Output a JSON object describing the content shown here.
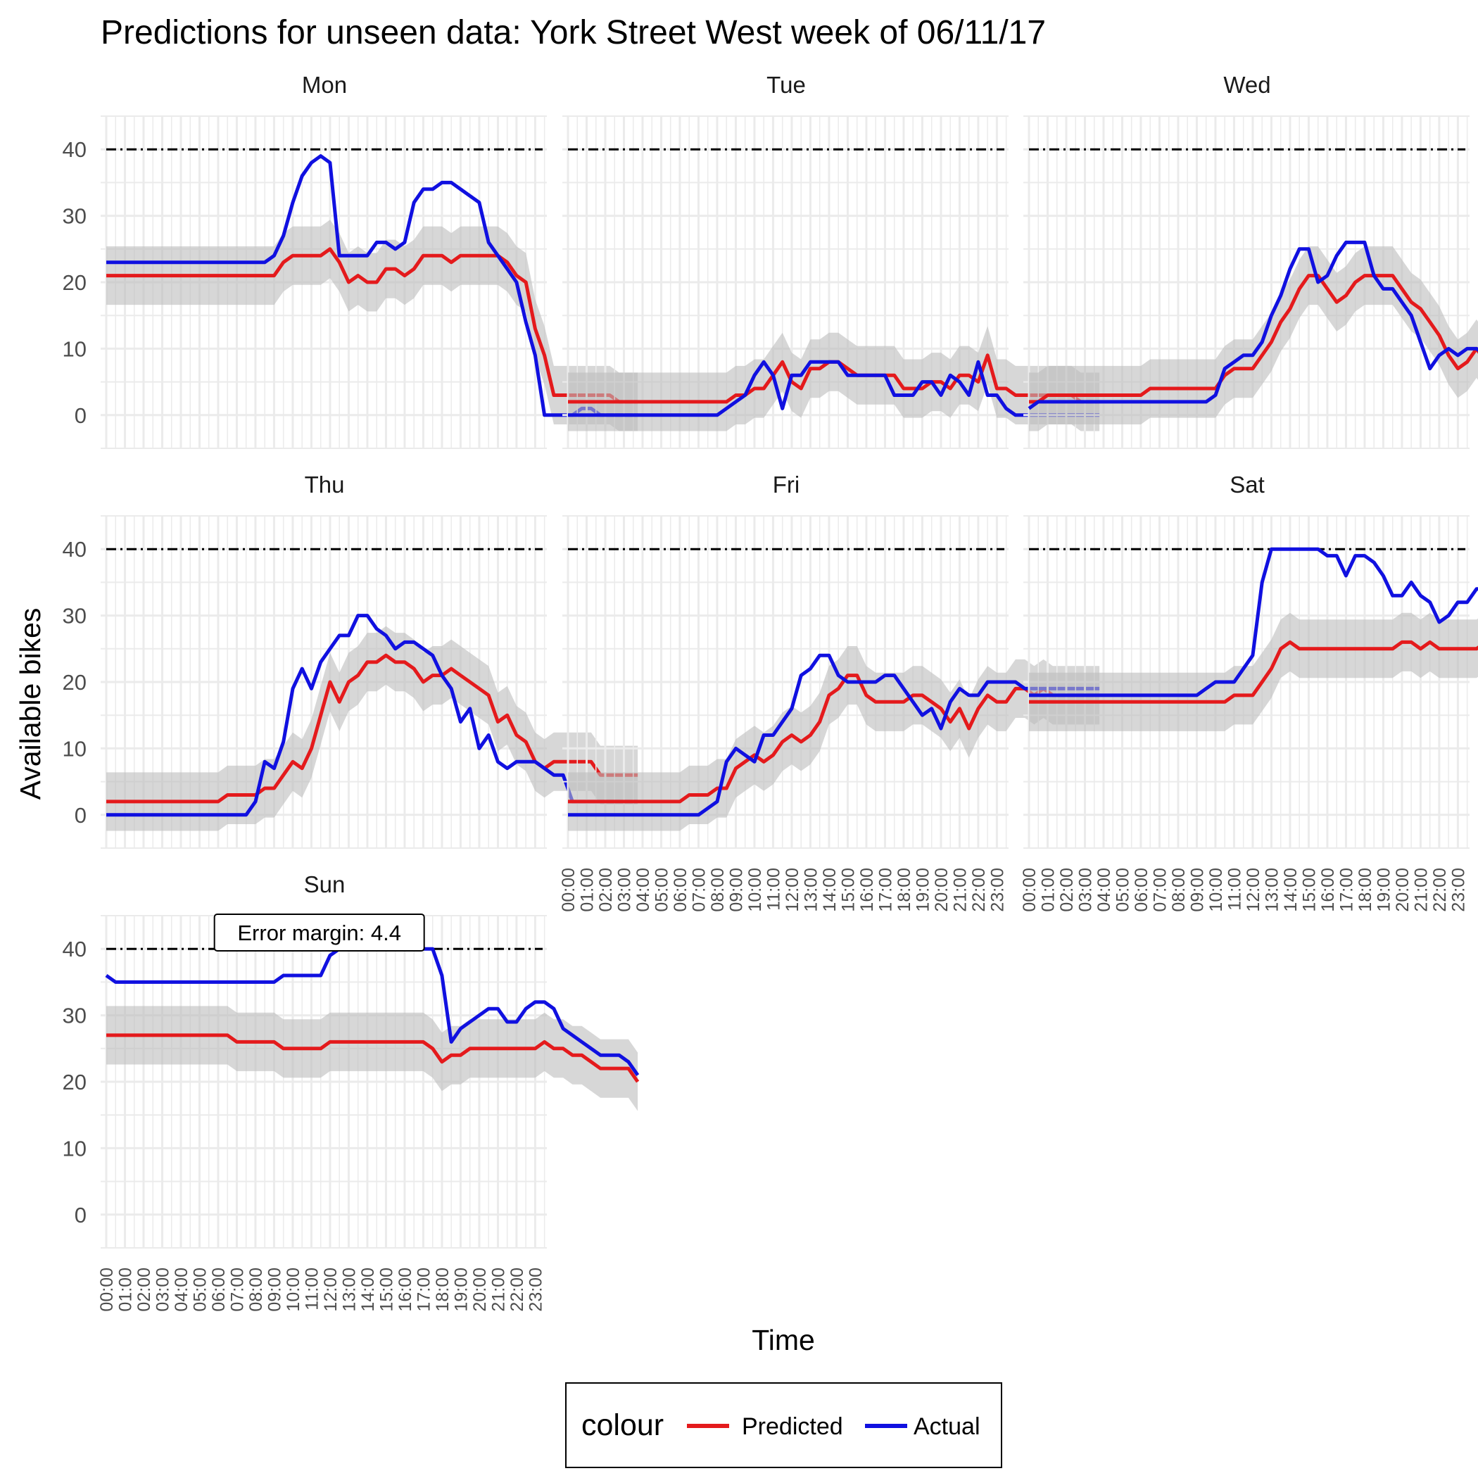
{
  "chart_data": {
    "type": "line",
    "title": "Predictions for unseen data: York Street West week of 06/11/17",
    "xlabel": "Time",
    "ylabel": "Available bikes",
    "ylim": [
      -5,
      45
    ],
    "y_ticks": [
      0,
      10,
      20,
      30,
      40
    ],
    "x_ticks": [
      "00:00",
      "01:00",
      "02:00",
      "03:00",
      "04:00",
      "05:00",
      "06:00",
      "07:00",
      "08:00",
      "09:00",
      "10:00",
      "11:00",
      "12:00",
      "13:00",
      "14:00",
      "15:00",
      "16:00",
      "17:00",
      "18:00",
      "19:00",
      "20:00",
      "21:00",
      "22:00",
      "23:00"
    ],
    "capacity_line": 40,
    "grid": true,
    "legend": {
      "title": "colour",
      "position": "bottom",
      "entries": [
        {
          "label": "Predicted",
          "color": "#e41a1c"
        },
        {
          "label": "Actual",
          "color": "#1010e0"
        }
      ]
    },
    "annotation": {
      "panel": "Sun",
      "text": "Error margin: 4.4"
    },
    "error_margin": 4.4,
    "x_resolution_hours": 0.5,
    "colors": {
      "predicted": "#e41a1c",
      "actual": "#1010e0",
      "band": "#bdbdbd",
      "grid": "#ebebeb",
      "reference": "#000000"
    },
    "panels": [
      {
        "day": "Mon",
        "predicted": [
          21,
          21,
          21,
          21,
          21,
          21,
          21,
          21,
          21,
          21,
          21,
          21,
          21,
          21,
          21,
          21,
          21,
          21,
          21,
          23,
          24,
          24,
          24,
          24,
          25,
          23,
          20,
          21,
          20,
          20,
          22,
          22,
          21,
          22,
          24,
          24,
          24,
          23,
          24,
          24,
          24,
          24,
          24,
          23,
          21,
          20,
          13,
          9,
          3,
          3,
          3,
          3,
          3,
          3,
          3,
          2,
          2,
          2
        ],
        "actual": [
          23,
          23,
          23,
          23,
          23,
          23,
          23,
          23,
          23,
          23,
          23,
          23,
          23,
          23,
          23,
          23,
          23,
          23,
          24,
          27,
          32,
          36,
          38,
          39,
          38,
          24,
          24,
          24,
          24,
          26,
          26,
          25,
          26,
          32,
          34,
          34,
          35,
          35,
          34,
          33,
          32,
          26,
          24,
          22,
          20,
          14,
          9,
          0,
          0,
          0,
          0,
          1,
          1,
          0,
          0,
          0,
          0,
          0
        ]
      },
      {
        "day": "Tue",
        "predicted": [
          2,
          2,
          2,
          2,
          2,
          2,
          2,
          2,
          2,
          2,
          2,
          2,
          2,
          2,
          2,
          2,
          2,
          2,
          3,
          3,
          4,
          4,
          6,
          8,
          5,
          4,
          7,
          7,
          8,
          8,
          7,
          6,
          6,
          6,
          6,
          6,
          4,
          4,
          4,
          5,
          5,
          4,
          6,
          6,
          5,
          9,
          4,
          4,
          3,
          3,
          3,
          3,
          3,
          3,
          3,
          2,
          2,
          2
        ],
        "actual": [
          0,
          0,
          0,
          0,
          0,
          0,
          0,
          0,
          0,
          0,
          0,
          0,
          0,
          0,
          0,
          0,
          0,
          1,
          2,
          3,
          6,
          8,
          6,
          1,
          6,
          6,
          8,
          8,
          8,
          8,
          6,
          6,
          6,
          6,
          6,
          3,
          3,
          3,
          5,
          5,
          3,
          6,
          5,
          3,
          8,
          3,
          3,
          1,
          0,
          0,
          0,
          0,
          0,
          0,
          0,
          0,
          0,
          0
        ]
      },
      {
        "day": "Wed",
        "predicted": [
          2,
          2,
          3,
          3,
          3,
          3,
          3,
          3,
          3,
          3,
          3,
          3,
          3,
          4,
          4,
          4,
          4,
          4,
          4,
          4,
          4,
          6,
          7,
          7,
          7,
          9,
          11,
          14,
          16,
          19,
          21,
          21,
          19,
          17,
          18,
          20,
          21,
          21,
          21,
          21,
          19,
          17,
          16,
          14,
          12,
          9,
          7,
          8,
          10,
          8,
          9,
          9,
          8,
          5,
          4,
          4,
          2,
          2
        ],
        "actual": [
          1,
          2,
          2,
          2,
          2,
          2,
          2,
          2,
          2,
          2,
          2,
          2,
          2,
          2,
          2,
          2,
          2,
          2,
          2,
          2,
          3,
          7,
          8,
          9,
          9,
          11,
          15,
          18,
          22,
          25,
          25,
          20,
          21,
          24,
          26,
          26,
          26,
          21,
          19,
          19,
          17,
          15,
          11,
          7,
          9,
          10,
          9,
          10,
          10,
          9,
          7,
          5,
          3,
          4,
          1,
          0,
          0,
          0
        ]
      },
      {
        "day": "Thu",
        "predicted": [
          2,
          2,
          2,
          2,
          2,
          2,
          2,
          2,
          2,
          2,
          2,
          2,
          2,
          3,
          3,
          3,
          3,
          4,
          4,
          6,
          8,
          7,
          10,
          15,
          20,
          17,
          20,
          21,
          23,
          23,
          24,
          23,
          23,
          22,
          20,
          21,
          21,
          22,
          21,
          20,
          19,
          18,
          14,
          15,
          12,
          11,
          8,
          7,
          8,
          8,
          8,
          8,
          8,
          6,
          6,
          6,
          6,
          6
        ],
        "actual": [
          0,
          0,
          0,
          0,
          0,
          0,
          0,
          0,
          0,
          0,
          0,
          0,
          0,
          0,
          0,
          0,
          2,
          8,
          7,
          11,
          19,
          22,
          19,
          23,
          25,
          27,
          27,
          30,
          30,
          28,
          27,
          25,
          26,
          26,
          25,
          24,
          21,
          19,
          14,
          16,
          10,
          12,
          8,
          7,
          8,
          8,
          8,
          7,
          6,
          6,
          2,
          2,
          2,
          2,
          2,
          2,
          2,
          2
        ]
      },
      {
        "day": "Fri",
        "predicted": [
          2,
          2,
          2,
          2,
          2,
          2,
          2,
          2,
          2,
          2,
          2,
          2,
          2,
          3,
          3,
          3,
          4,
          4,
          7,
          8,
          9,
          8,
          9,
          11,
          12,
          11,
          12,
          14,
          18,
          19,
          21,
          21,
          18,
          17,
          17,
          17,
          17,
          18,
          18,
          17,
          16,
          14,
          16,
          13,
          16,
          18,
          17,
          17,
          19,
          19,
          18,
          19,
          18,
          18,
          18,
          18,
          18,
          18
        ],
        "actual": [
          0,
          0,
          0,
          0,
          0,
          0,
          0,
          0,
          0,
          0,
          0,
          0,
          0,
          0,
          0,
          1,
          2,
          8,
          10,
          9,
          8,
          12,
          12,
          14,
          16,
          21,
          22,
          24,
          24,
          21,
          20,
          20,
          20,
          20,
          21,
          21,
          19,
          17,
          15,
          16,
          13,
          17,
          19,
          18,
          18,
          20,
          20,
          20,
          20,
          19,
          19,
          19,
          19,
          19,
          19,
          19,
          19,
          19
        ]
      },
      {
        "day": "Sat",
        "predicted": [
          17,
          17,
          17,
          17,
          17,
          17,
          17,
          17,
          17,
          17,
          17,
          17,
          17,
          17,
          17,
          17,
          17,
          17,
          17,
          17,
          17,
          17,
          18,
          18,
          18,
          20,
          22,
          25,
          26,
          25,
          25,
          25,
          25,
          25,
          25,
          25,
          25,
          25,
          25,
          25,
          26,
          26,
          25,
          26,
          25,
          25,
          25,
          25,
          25,
          26,
          26,
          26,
          26,
          26,
          26,
          26,
          26,
          27
        ],
        "actual": [
          18,
          18,
          18,
          18,
          18,
          18,
          18,
          18,
          18,
          18,
          18,
          18,
          18,
          18,
          18,
          18,
          18,
          18,
          18,
          19,
          20,
          20,
          20,
          22,
          24,
          35,
          40,
          40,
          40,
          40,
          40,
          40,
          39,
          39,
          36,
          39,
          39,
          38,
          36,
          33,
          33,
          35,
          33,
          32,
          29,
          30,
          32,
          32,
          34,
          34,
          38,
          38,
          37,
          36,
          36,
          36,
          36,
          36
        ]
      },
      {
        "day": "Sun",
        "predicted": [
          27,
          27,
          27,
          27,
          27,
          27,
          27,
          27,
          27,
          27,
          27,
          27,
          27,
          27,
          26,
          26,
          26,
          26,
          26,
          25,
          25,
          25,
          25,
          25,
          26,
          26,
          26,
          26,
          26,
          26,
          26,
          26,
          26,
          26,
          26,
          25,
          23,
          24,
          24,
          25,
          25,
          25,
          25,
          25,
          25,
          25,
          25,
          26,
          25,
          25,
          24,
          24,
          23,
          22,
          22,
          22,
          22,
          20
        ],
        "actual": [
          36,
          35,
          35,
          35,
          35,
          35,
          35,
          35,
          35,
          35,
          35,
          35,
          35,
          35,
          35,
          35,
          35,
          35,
          35,
          36,
          36,
          36,
          36,
          36,
          39,
          40,
          40,
          40,
          40,
          40,
          40,
          40,
          40,
          40,
          40,
          40,
          36,
          26,
          28,
          29,
          30,
          31,
          31,
          29,
          29,
          31,
          32,
          32,
          31,
          28,
          27,
          26,
          25,
          24,
          24,
          24,
          23,
          21
        ]
      }
    ]
  }
}
